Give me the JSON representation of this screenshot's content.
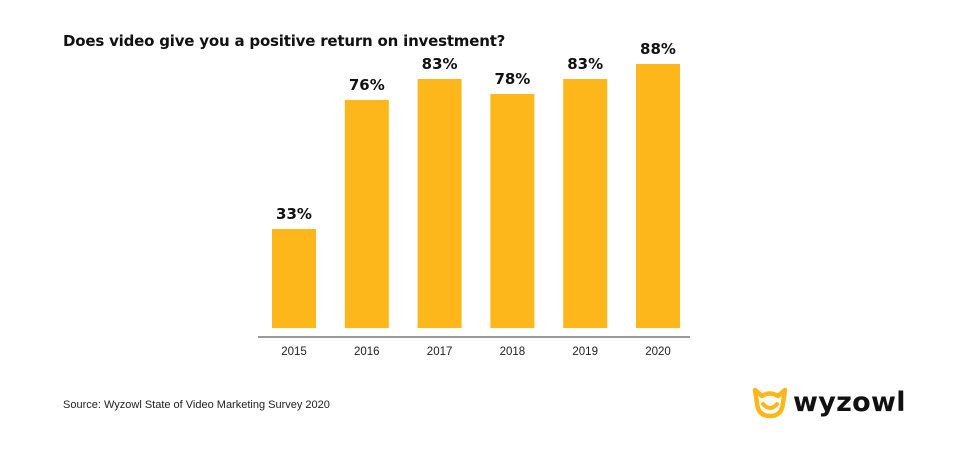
{
  "title": "Does video give you a positive return on investment?",
  "source": "Source: Wyzowl State of Video Marketing Survey 2020",
  "logo": {
    "text": "wyzowl",
    "icon": "owl-icon"
  },
  "colors": {
    "bar": "#FDB71A",
    "axis": "#333333",
    "text": "#111111"
  },
  "chart_data": {
    "type": "bar",
    "title": "Does video give you a positive return on investment?",
    "categories": [
      "2015",
      "2016",
      "2017",
      "2018",
      "2019",
      "2020"
    ],
    "values": [
      33,
      76,
      83,
      78,
      83,
      88
    ],
    "data_labels": [
      "33%",
      "76%",
      "83%",
      "78%",
      "83%",
      "88%"
    ],
    "xlabel": "",
    "ylabel": "",
    "ylim": [
      0,
      100
    ],
    "grid": false,
    "legend": "none"
  }
}
